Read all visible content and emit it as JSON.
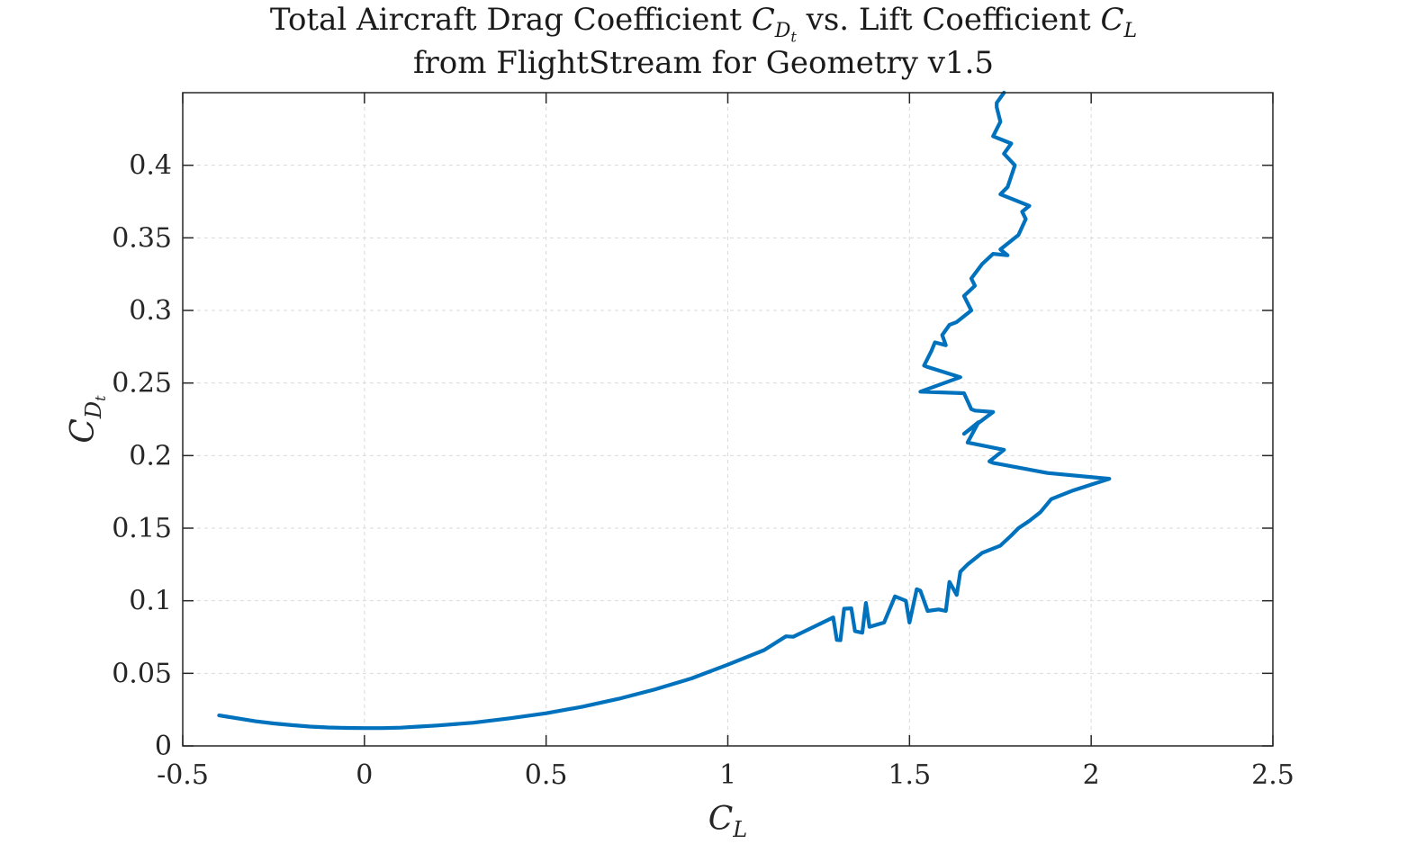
{
  "chart_data": {
    "type": "line",
    "title": {
      "line1_prefix": "Total Aircraft Drag Coefficient ",
      "line1_cd_symbol": "C",
      "line1_cd_sub": "D",
      "line1_cd_subsub": "t",
      "line1_middle": " vs. Lift Coefficient ",
      "line1_cl_symbol": "C",
      "line1_cl_sub": "L",
      "line2": "from FlightStream for Geometry v1.5"
    },
    "xlabel": {
      "symbol": "C",
      "sub": "L"
    },
    "ylabel": {
      "symbol": "C",
      "sub": "D",
      "subsub": "t"
    },
    "xlim": [
      -0.5,
      2.5
    ],
    "ylim": [
      0,
      0.45
    ],
    "xticks": [
      -0.5,
      0,
      0.5,
      1,
      1.5,
      2,
      2.5
    ],
    "xtick_labels": [
      "-0.5",
      "0",
      "0.5",
      "1",
      "1.5",
      "2",
      "2.5"
    ],
    "yticks": [
      0,
      0.05,
      0.1,
      0.15,
      0.2,
      0.25,
      0.3,
      0.35,
      0.4
    ],
    "ytick_labels": [
      "0",
      "0.05",
      "0.1",
      "0.15",
      "0.2",
      "0.25",
      "0.3",
      "0.35",
      "0.4"
    ],
    "grid": true,
    "line_color": "#0072BD",
    "series": [
      {
        "x": [
          -0.4,
          -0.35,
          -0.3,
          -0.25,
          -0.2,
          -0.15,
          -0.1,
          -0.05,
          0.0,
          0.05,
          0.1,
          0.15,
          0.2,
          0.3,
          0.4,
          0.5,
          0.6,
          0.7,
          0.8,
          0.9,
          1.0,
          1.1,
          1.16,
          1.18,
          1.29,
          1.3,
          1.31,
          1.32,
          1.34,
          1.35,
          1.37,
          1.38,
          1.39,
          1.43,
          1.46,
          1.49,
          1.5,
          1.52,
          1.53,
          1.55,
          1.58,
          1.6,
          1.61,
          1.63,
          1.64,
          1.66,
          1.7,
          1.75,
          1.78,
          1.8,
          1.83,
          1.86,
          1.89,
          1.95,
          2.05,
          1.88,
          1.73,
          1.72,
          1.76,
          1.66,
          1.69,
          1.65,
          1.73,
          1.68,
          1.67,
          1.65,
          1.53,
          1.64,
          1.55,
          1.54,
          1.56,
          1.57,
          1.6,
          1.59,
          1.61,
          1.63,
          1.67,
          1.65,
          1.68,
          1.67,
          1.7,
          1.73,
          1.77,
          1.75,
          1.8,
          1.82,
          1.81,
          1.83,
          1.75,
          1.77,
          1.79,
          1.76,
          1.78,
          1.73,
          1.75,
          1.74,
          1.74,
          1.76
        ],
        "y": [
          0.021,
          0.019,
          0.017,
          0.0155,
          0.0143,
          0.0133,
          0.0127,
          0.0124,
          0.0123,
          0.0123,
          0.0126,
          0.0133,
          0.0141,
          0.016,
          0.019,
          0.0225,
          0.027,
          0.0325,
          0.039,
          0.0465,
          0.056,
          0.066,
          0.0755,
          0.0752,
          0.0885,
          0.073,
          0.0728,
          0.0945,
          0.0948,
          0.079,
          0.078,
          0.0985,
          0.082,
          0.085,
          0.103,
          0.1,
          0.085,
          0.108,
          0.107,
          0.093,
          0.094,
          0.093,
          0.113,
          0.104,
          0.12,
          0.125,
          0.133,
          0.138,
          0.145,
          0.15,
          0.155,
          0.161,
          0.17,
          0.176,
          0.184,
          0.188,
          0.195,
          0.196,
          0.204,
          0.209,
          0.223,
          0.215,
          0.23,
          0.231,
          0.232,
          0.243,
          0.244,
          0.254,
          0.261,
          0.262,
          0.272,
          0.278,
          0.276,
          0.283,
          0.29,
          0.292,
          0.3,
          0.31,
          0.317,
          0.322,
          0.332,
          0.339,
          0.338,
          0.342,
          0.352,
          0.363,
          0.368,
          0.372,
          0.38,
          0.385,
          0.4,
          0.408,
          0.415,
          0.42,
          0.43,
          0.44,
          0.443,
          0.45
        ]
      }
    ]
  }
}
